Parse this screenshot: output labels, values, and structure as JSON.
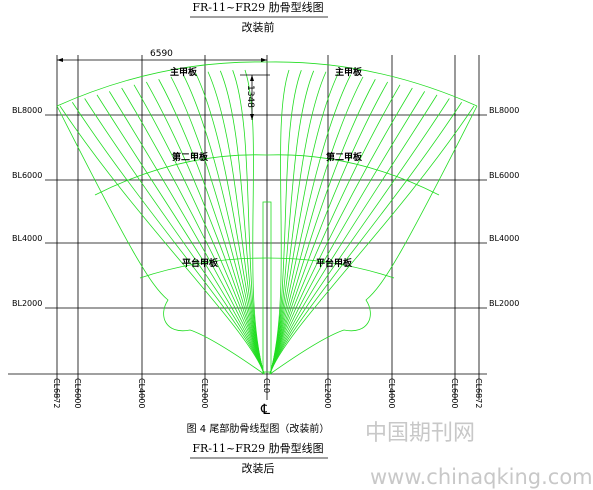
{
  "header": {
    "title": "FR-11~FR29 肋骨型线图",
    "subtitle": "改装前"
  },
  "drawing": {
    "dimensions": [
      "6590",
      "1348"
    ],
    "decks": {
      "main": "主甲板",
      "second": "第二甲板",
      "platform": "平台甲板"
    },
    "bl_labels": [
      "BL8000",
      "BL6000",
      "BL4000",
      "BL2000"
    ],
    "cl_labels": [
      "CL6872",
      "CL6000",
      "CL4000",
      "CL2000",
      "CL0",
      "CL2000",
      "CL4000",
      "CL6000",
      "CL6872"
    ],
    "centerline_symbol": "℄"
  },
  "caption": "图 4 尾部肋骨线型图（改装前）",
  "footer": {
    "title": "FR-11~FR29 肋骨型线图",
    "subtitle": "改装后"
  },
  "watermark": {
    "cn": "中国期刊网",
    "url": "www.chinaqking.com"
  }
}
